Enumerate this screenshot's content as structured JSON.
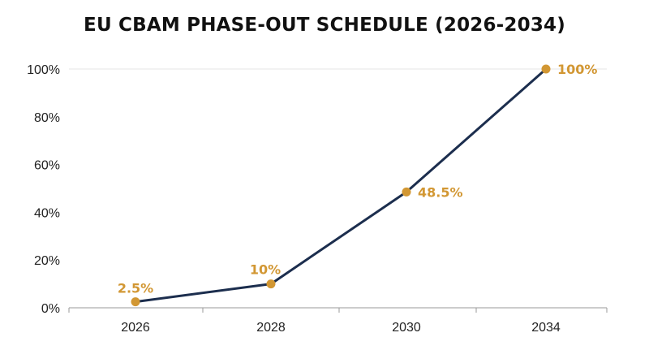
{
  "chart_data": {
    "type": "line",
    "title": "EU CBAM PHASE-OUT SCHEDULE (2026-2034)",
    "xlabel": "",
    "ylabel": "",
    "categories": [
      "2026",
      "2028",
      "2030",
      "2034"
    ],
    "series": [
      {
        "values": [
          2.5,
          10,
          48.5,
          100
        ]
      }
    ],
    "data_labels": [
      "2.5%",
      "10%",
      "48.5%",
      "100%"
    ],
    "ylim": [
      0,
      100
    ],
    "yticks": [
      0,
      20,
      40,
      60,
      80,
      100
    ],
    "ytick_labels": [
      "0%",
      "20%",
      "40%",
      "60%",
      "80%",
      "100%"
    ],
    "grid": "top border line only",
    "legend": "none",
    "colors": {
      "line": "#1c2e4e",
      "marker": "#d29733",
      "label": "#d29733",
      "axis": "#999999"
    }
  }
}
